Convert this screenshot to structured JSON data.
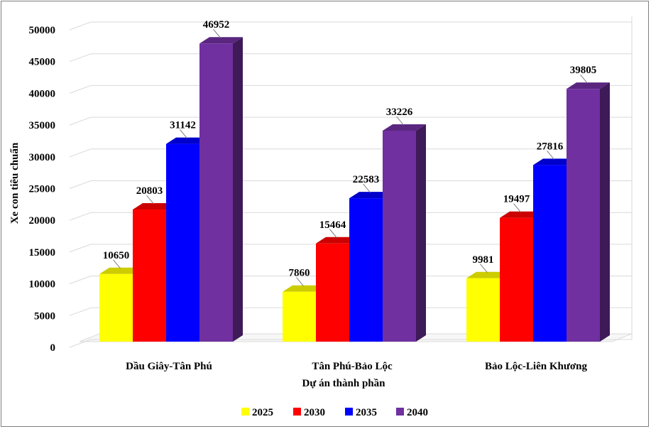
{
  "chart_data": {
    "type": "bar",
    "style": "3d-clustered-column",
    "categories": [
      "Dầu Giây-Tân Phú",
      "Tân Phú-Bảo Lộc",
      "Bảo Lộc-Liên Khương"
    ],
    "series": [
      {
        "name": "2025",
        "color": "#ffff00",
        "values": [
          10650,
          7860,
          9981
        ]
      },
      {
        "name": "2030",
        "color": "#ff0000",
        "values": [
          20803,
          15464,
          19497
        ]
      },
      {
        "name": "2035",
        "color": "#0000ff",
        "values": [
          31142,
          22583,
          27816
        ]
      },
      {
        "name": "2040",
        "color": "#7030a0",
        "values": [
          46952,
          33226,
          39805
        ]
      }
    ],
    "xlabel": "Dự án thành phần",
    "ylabel": "Xe con tiêu chuẩn",
    "ylim": [
      0,
      50000
    ],
    "yticks": [
      0,
      5000,
      10000,
      15000,
      20000,
      25000,
      30000,
      35000,
      40000,
      45000,
      50000
    ],
    "grid": true,
    "legend": "bottom",
    "data_labels": true
  }
}
